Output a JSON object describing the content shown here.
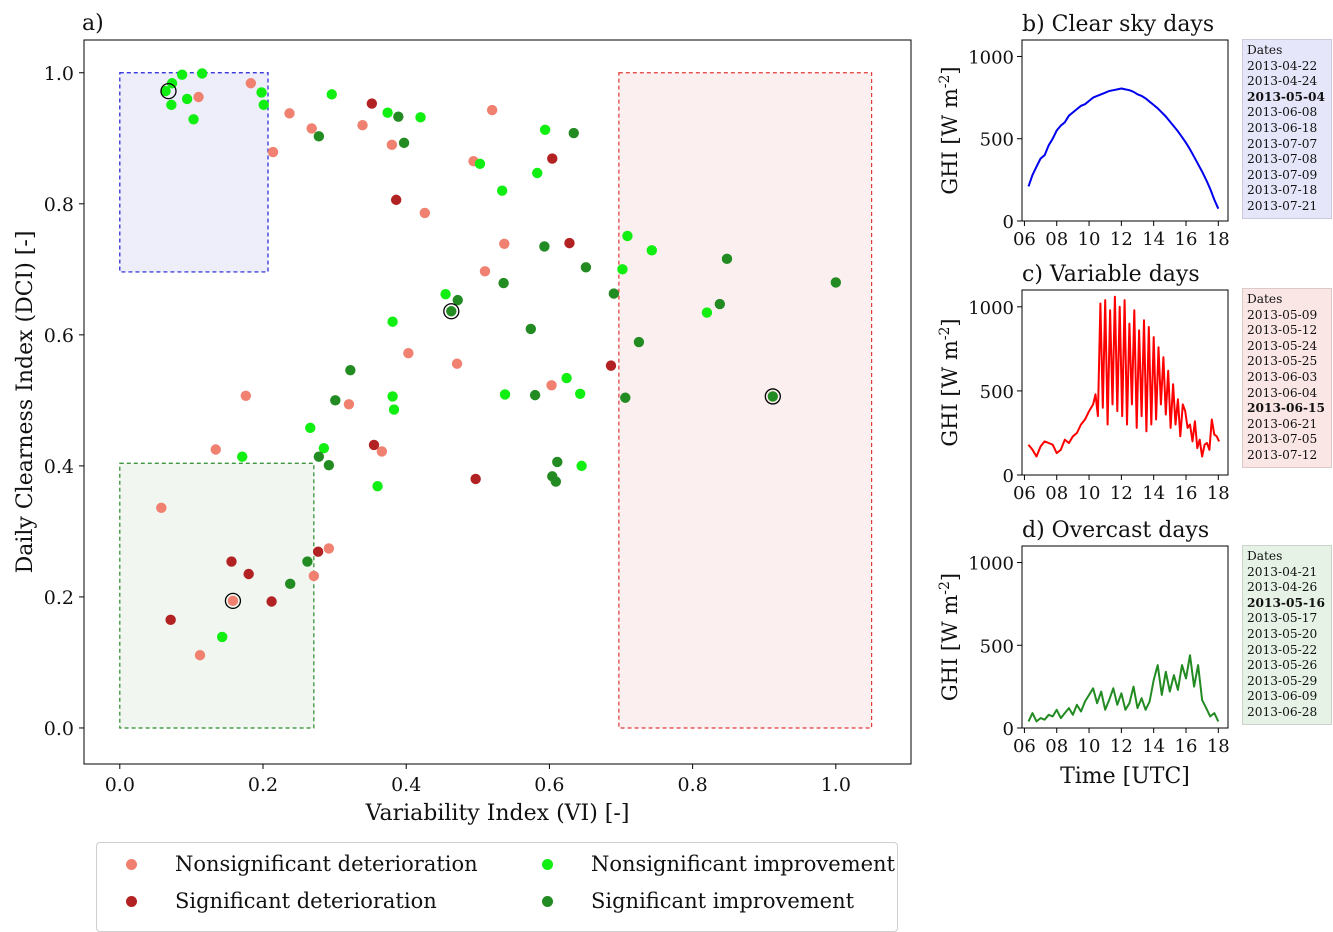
{
  "chart_data": [
    {
      "type": "scatter",
      "panel_label": "a)",
      "xlabel": "Variability Index (VI) [-]",
      "ylabel": "Daily Clearness Index (DCI) [-]",
      "xlim": [
        -0.05,
        1.105
      ],
      "ylim": [
        -0.055,
        1.05
      ],
      "xticks": [
        "0.0",
        "0.2",
        "0.4",
        "0.6",
        "0.8",
        "1.0"
      ],
      "yticks": [
        "0.0",
        "0.2",
        "0.4",
        "0.6",
        "0.8",
        "1.0"
      ],
      "grid": false,
      "legend_position": "bottom",
      "regions": [
        {
          "name": "clear-sky-region",
          "x": [
            0.0,
            0.207
          ],
          "y": [
            0.696,
            1.0
          ],
          "color": "#1f1fd6",
          "fill": "#eeeefb"
        },
        {
          "name": "variable-region",
          "x": [
            0.697,
            1.05
          ],
          "y": [
            0.0,
            1.0
          ],
          "color": "#e03a3a",
          "fill": "#fcefef"
        },
        {
          "name": "overcast-region",
          "x": [
            0.0,
            0.271
          ],
          "y": [
            0.0,
            0.404
          ],
          "color": "#2a8a2a",
          "fill": "#f1f7f0"
        }
      ],
      "series": [
        {
          "name": "Nonsignificant deterioration",
          "color": "#f08070",
          "points": [
            [
              0.183,
              0.984
            ],
            [
              0.11,
              0.963
            ],
            [
              0.237,
              0.938
            ],
            [
              0.268,
              0.915
            ],
            [
              0.339,
              0.92
            ],
            [
              0.38,
              0.89
            ],
            [
              0.52,
              0.943
            ],
            [
              0.214,
              0.879
            ],
            [
              0.494,
              0.865
            ],
            [
              0.426,
              0.786
            ],
            [
              0.537,
              0.739
            ],
            [
              0.51,
              0.697
            ],
            [
              0.403,
              0.572
            ],
            [
              0.471,
              0.556
            ],
            [
              0.176,
              0.507
            ],
            [
              0.32,
              0.494
            ],
            [
              0.603,
              0.523
            ],
            [
              0.134,
              0.425
            ],
            [
              0.366,
              0.422
            ],
            [
              0.058,
              0.336
            ],
            [
              0.292,
              0.274
            ],
            [
              0.271,
              0.232
            ],
            [
              0.158,
              0.194
            ],
            [
              0.112,
              0.111
            ]
          ]
        },
        {
          "name": "Significant deterioration",
          "color": "#b22222",
          "points": [
            [
              0.352,
              0.953
            ],
            [
              0.386,
              0.806
            ],
            [
              0.604,
              0.869
            ],
            [
              0.628,
              0.74
            ],
            [
              0.686,
              0.553
            ],
            [
              0.497,
              0.38
            ],
            [
              0.355,
              0.432
            ],
            [
              0.277,
              0.269
            ],
            [
              0.156,
              0.254
            ],
            [
              0.18,
              0.235
            ],
            [
              0.212,
              0.193
            ],
            [
              0.071,
              0.165
            ]
          ]
        },
        {
          "name": "Nonsignificant improvement",
          "color": "#11ee11",
          "points": [
            [
              0.073,
              0.984
            ],
            [
              0.087,
              0.997
            ],
            [
              0.115,
              0.999
            ],
            [
              0.064,
              0.972
            ],
            [
              0.094,
              0.96
            ],
            [
              0.072,
              0.951
            ],
            [
              0.103,
              0.929
            ],
            [
              0.198,
              0.97
            ],
            [
              0.201,
              0.951
            ],
            [
              0.296,
              0.967
            ],
            [
              0.374,
              0.939
            ],
            [
              0.42,
              0.932
            ],
            [
              0.594,
              0.913
            ],
            [
              0.503,
              0.861
            ],
            [
              0.534,
              0.82
            ],
            [
              0.583,
              0.847
            ],
            [
              0.709,
              0.751
            ],
            [
              0.743,
              0.729
            ],
            [
              0.702,
              0.7
            ],
            [
              0.455,
              0.662
            ],
            [
              0.82,
              0.634
            ],
            [
              0.381,
              0.62
            ],
            [
              0.266,
              0.458
            ],
            [
              0.171,
              0.414
            ],
            [
              0.381,
              0.506
            ],
            [
              0.383,
              0.486
            ],
            [
              0.538,
              0.509
            ],
            [
              0.624,
              0.534
            ],
            [
              0.643,
              0.51
            ],
            [
              0.285,
              0.427
            ],
            [
              0.36,
              0.369
            ],
            [
              0.645,
              0.4
            ],
            [
              0.143,
              0.139
            ]
          ]
        },
        {
          "name": "Significant improvement",
          "color": "#228b22",
          "points": [
            [
              0.278,
              0.903
            ],
            [
              0.389,
              0.933
            ],
            [
              0.397,
              0.893
            ],
            [
              0.634,
              0.908
            ],
            [
              0.593,
              0.735
            ],
            [
              0.651,
              0.703
            ],
            [
              0.848,
              0.716
            ],
            [
              1.0,
              0.68
            ],
            [
              0.536,
              0.679
            ],
            [
              0.69,
              0.663
            ],
            [
              0.472,
              0.653
            ],
            [
              0.463,
              0.636
            ],
            [
              0.838,
              0.647
            ],
            [
              0.574,
              0.609
            ],
            [
              0.725,
              0.589
            ],
            [
              0.322,
              0.546
            ],
            [
              0.301,
              0.5
            ],
            [
              0.58,
              0.508
            ],
            [
              0.706,
              0.504
            ],
            [
              0.912,
              0.506
            ],
            [
              0.278,
              0.414
            ],
            [
              0.292,
              0.401
            ],
            [
              0.611,
              0.406
            ],
            [
              0.604,
              0.384
            ],
            [
              0.609,
              0.376
            ],
            [
              0.262,
              0.254
            ],
            [
              0.238,
              0.22
            ]
          ]
        }
      ],
      "highlighted_points": [
        [
          0.068,
          0.972
        ],
        [
          0.463,
          0.636
        ],
        [
          0.158,
          0.194
        ],
        [
          0.912,
          0.506
        ]
      ]
    },
    {
      "type": "line",
      "panel_label": "b)",
      "title": "Clear sky days",
      "xlabel": "",
      "ylabel": "GHI [W m$^{-2}$]",
      "xlim": [
        5.85,
        18.6
      ],
      "ylim": [
        0,
        1100
      ],
      "xticks": [
        "06",
        "08",
        "10",
        "12",
        "14",
        "16",
        "18"
      ],
      "yticks": [
        "0",
        "500",
        "1000"
      ],
      "color": "#0000ee",
      "x": [
        6.25,
        6.5,
        6.75,
        7.0,
        7.25,
        7.5,
        7.75,
        8.0,
        8.25,
        8.5,
        8.75,
        9.0,
        9.25,
        9.5,
        9.75,
        10.0,
        10.25,
        10.5,
        10.75,
        11.0,
        11.25,
        11.5,
        11.75,
        12.0,
        12.25,
        12.5,
        12.75,
        13.0,
        13.25,
        13.5,
        13.75,
        14.0,
        14.25,
        14.5,
        14.75,
        15.0,
        15.25,
        15.5,
        15.75,
        16.0,
        16.25,
        16.5,
        16.75,
        17.0,
        17.25,
        17.5,
        17.75,
        18.0
      ],
      "y": [
        210,
        280,
        330,
        380,
        400,
        460,
        500,
        550,
        580,
        600,
        640,
        660,
        680,
        700,
        710,
        730,
        750,
        760,
        770,
        780,
        790,
        795,
        800,
        805,
        800,
        795,
        785,
        770,
        760,
        745,
        725,
        705,
        685,
        660,
        635,
        605,
        575,
        545,
        510,
        475,
        435,
        390,
        345,
        300,
        250,
        195,
        130,
        75
      ]
    },
    {
      "type": "line",
      "panel_label": "c)",
      "title": "Variable days",
      "xlabel": "",
      "ylabel": "GHI [W m$^{-2}$]",
      "xlim": [
        5.85,
        18.6
      ],
      "ylim": [
        0,
        1100
      ],
      "xticks": [
        "06",
        "08",
        "10",
        "12",
        "14",
        "16",
        "18"
      ],
      "yticks": [
        "0",
        "500",
        "1000"
      ],
      "color": "#ff0000",
      "x": [
        6.25,
        6.5,
        6.75,
        7.0,
        7.25,
        7.5,
        7.75,
        8.0,
        8.25,
        8.5,
        8.75,
        9.0,
        9.25,
        9.5,
        9.75,
        10.0,
        10.25,
        10.4,
        10.55,
        10.7,
        10.85,
        11.0,
        11.15,
        11.3,
        11.45,
        11.6,
        11.75,
        11.9,
        12.05,
        12.2,
        12.35,
        12.5,
        12.65,
        12.8,
        12.95,
        13.1,
        13.25,
        13.4,
        13.55,
        13.7,
        13.85,
        14.0,
        14.15,
        14.3,
        14.45,
        14.6,
        14.75,
        14.9,
        15.05,
        15.2,
        15.35,
        15.5,
        15.65,
        15.8,
        15.95,
        16.1,
        16.25,
        16.4,
        16.55,
        16.7,
        16.85,
        17.0,
        17.15,
        17.3,
        17.45,
        17.6,
        17.75,
        17.9,
        18.05
      ],
      "y": [
        180,
        150,
        110,
        170,
        200,
        190,
        180,
        130,
        150,
        210,
        190,
        230,
        250,
        300,
        330,
        380,
        420,
        480,
        350,
        1020,
        400,
        1040,
        300,
        980,
        420,
        1060,
        380,
        1000,
        350,
        1040,
        300,
        900,
        420,
        980,
        280,
        860,
        350,
        920,
        260,
        880,
        300,
        820,
        330,
        760,
        420,
        700,
        360,
        620,
        280,
        540,
        300,
        450,
        230,
        420,
        380,
        280,
        300,
        200,
        320,
        160,
        210,
        110,
        180,
        190,
        150,
        330,
        240,
        230,
        200
      ]
    },
    {
      "type": "line",
      "panel_label": "d)",
      "title": "Overcast days",
      "xlabel": "Time [UTC]",
      "ylabel": "GHI [W m$^{-2}$]",
      "xlim": [
        5.85,
        18.6
      ],
      "ylim": [
        0,
        1100
      ],
      "xticks": [
        "06",
        "08",
        "10",
        "12",
        "14",
        "16",
        "18"
      ],
      "yticks": [
        "0",
        "500",
        "1000"
      ],
      "color": "#228b22",
      "x": [
        6.25,
        6.5,
        6.75,
        7.0,
        7.25,
        7.5,
        7.75,
        8.0,
        8.25,
        8.5,
        8.75,
        9.0,
        9.25,
        9.5,
        9.75,
        10.0,
        10.25,
        10.5,
        10.75,
        11.0,
        11.25,
        11.5,
        11.75,
        12.0,
        12.25,
        12.5,
        12.75,
        13.0,
        13.25,
        13.5,
        13.75,
        14.0,
        14.25,
        14.5,
        14.75,
        15.0,
        15.25,
        15.5,
        15.75,
        16.0,
        16.25,
        16.5,
        16.75,
        17.0,
        17.25,
        17.5,
        17.75,
        18.0
      ],
      "y": [
        40,
        90,
        40,
        60,
        50,
        80,
        70,
        110,
        60,
        90,
        120,
        80,
        140,
        100,
        160,
        200,
        240,
        150,
        220,
        110,
        170,
        240,
        140,
        210,
        110,
        150,
        250,
        120,
        180,
        110,
        160,
        290,
        380,
        200,
        340,
        220,
        320,
        230,
        380,
        300,
        440,
        250,
        380,
        170,
        120,
        70,
        90,
        40
      ]
    }
  ],
  "legend": [
    {
      "label": "Nonsignificant deterioration",
      "color": "#f08070"
    },
    {
      "label": "Significant deterioration",
      "color": "#b22222"
    },
    {
      "label": "Nonsignificant improvement",
      "color": "#11ee11"
    },
    {
      "label": "Significant improvement",
      "color": "#228b22"
    }
  ],
  "date_lists": [
    {
      "name": "clear",
      "header": "Dates",
      "dates": [
        "2013-04-22",
        "2013-04-24",
        "2013-05-04",
        "2013-06-08",
        "2013-06-18",
        "2013-07-07",
        "2013-07-08",
        "2013-07-09",
        "2013-07-18",
        "2013-07-21"
      ],
      "highlight": "2013-05-04",
      "background": "#e6e6fa"
    },
    {
      "name": "variable",
      "header": "Dates",
      "dates": [
        "2013-05-09",
        "2013-05-12",
        "2013-05-24",
        "2013-05-25",
        "2013-06-03",
        "2013-06-04",
        "2013-06-15",
        "2013-06-21",
        "2013-07-05",
        "2013-07-12"
      ],
      "highlight": "2013-06-15",
      "background": "#fbe6e6"
    },
    {
      "name": "overcast",
      "header": "Dates",
      "dates": [
        "2013-04-21",
        "2013-04-26",
        "2013-05-16",
        "2013-05-17",
        "2013-05-20",
        "2013-05-22",
        "2013-05-26",
        "2013-05-29",
        "2013-06-09",
        "2013-06-28"
      ],
      "highlight": "2013-05-16",
      "background": "#e6f2e6"
    }
  ]
}
